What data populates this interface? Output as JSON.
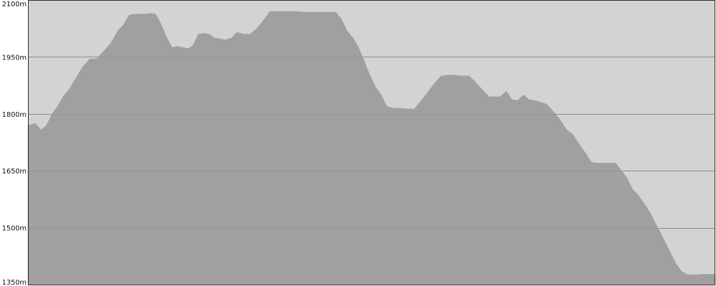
{
  "chart_data": {
    "type": "area",
    "title": "",
    "xlabel": "",
    "ylabel": "",
    "ylim": [
      1350,
      2100
    ],
    "y_ticks": [
      {
        "value": 2100,
        "label": "2100m"
      },
      {
        "value": 1950,
        "label": "1950m"
      },
      {
        "value": 1800,
        "label": "1800m"
      },
      {
        "value": 1650,
        "label": "1650m"
      },
      {
        "value": 1500,
        "label": "1500m"
      },
      {
        "value": 1350,
        "label": "1350m"
      }
    ],
    "grid": true,
    "x_axis_labels": false,
    "x": [
      0,
      1.1,
      1.9,
      2.7,
      3.5,
      4.3,
      5.1,
      6.0,
      7.0,
      8.0,
      9.0,
      10.0,
      11.0,
      12.0,
      13.1,
      13.9,
      14.7,
      15.5,
      16.3,
      17.0,
      17.8,
      18.6,
      19.4,
      20.2,
      21.0,
      21.8,
      22.5,
      23.3,
      24.0,
      24.8,
      25.6,
      26.4,
      27.1,
      27.9,
      28.7,
      29.6,
      30.4,
      31.4,
      32.3,
      33.3,
      34.2,
      35.2,
      36.0,
      37.0,
      38.0,
      39.0,
      40.1,
      41.1,
      42.2,
      43.2,
      44.0,
      44.8,
      45.6,
      46.4,
      47.3,
      48.1,
      48.9,
      49.8,
      50.6,
      51.4,
      52.2,
      53.2,
      54.1,
      55.2,
      56.2,
      57.2,
      58.3,
      59.1,
      60.1,
      61.0,
      62.1,
      63.2,
      64.2,
      65.3,
      66.3,
      67.1,
      67.9,
      68.7,
      69.6,
      70.4,
      71.2,
      72.1,
      72.9,
      73.8,
      74.7,
      75.5,
      76.5,
      77.4,
      78.3,
      79.3,
      80.2,
      81.0,
      82.0,
      82.9,
      83.9,
      84.7,
      85.5,
      86.3,
      87.2,
      88.0,
      88.7,
      89.4,
      90.1,
      90.8,
      91.5,
      92.2,
      92.9,
      93.6,
      94.3,
      95.1,
      96.0,
      97.3,
      98.0,
      100.0
    ],
    "series": [
      {
        "values": [
          1770,
          1775,
          1758,
          1770,
          1800,
          1820,
          1845,
          1865,
          1895,
          1925,
          1945,
          1945,
          1965,
          1985,
          2020,
          2035,
          2060,
          2063,
          2063,
          2063,
          2065,
          2063,
          2035,
          2000,
          1975,
          1978,
          1975,
          1972,
          1980,
          2010,
          2012,
          2010,
          2000,
          1998,
          1995,
          2000,
          2015,
          2010,
          2010,
          2025,
          2045,
          2070,
          2070,
          2070,
          2070,
          2070,
          2068,
          2068,
          2068,
          2068,
          2068,
          2068,
          2050,
          2020,
          2000,
          1975,
          1940,
          1900,
          1870,
          1850,
          1820,
          1815,
          1815,
          1813,
          1813,
          1835,
          1860,
          1880,
          1900,
          1902,
          1902,
          1900,
          1900,
          1880,
          1860,
          1845,
          1845,
          1845,
          1860,
          1838,
          1835,
          1850,
          1838,
          1835,
          1830,
          1825,
          1805,
          1785,
          1760,
          1745,
          1720,
          1700,
          1672,
          1670,
          1670,
          1670,
          1670,
          1652,
          1630,
          1600,
          1588,
          1570,
          1552,
          1530,
          1505,
          1480,
          1455,
          1430,
          1405,
          1385,
          1376,
          1376,
          1377,
          1377
        ]
      }
    ],
    "colors": {
      "background": "#d3d3d3",
      "area_fill": "#a0a0a0",
      "grid": "#8c8c8c",
      "border": "#2b2b2b",
      "tick_text": "#111111"
    }
  }
}
